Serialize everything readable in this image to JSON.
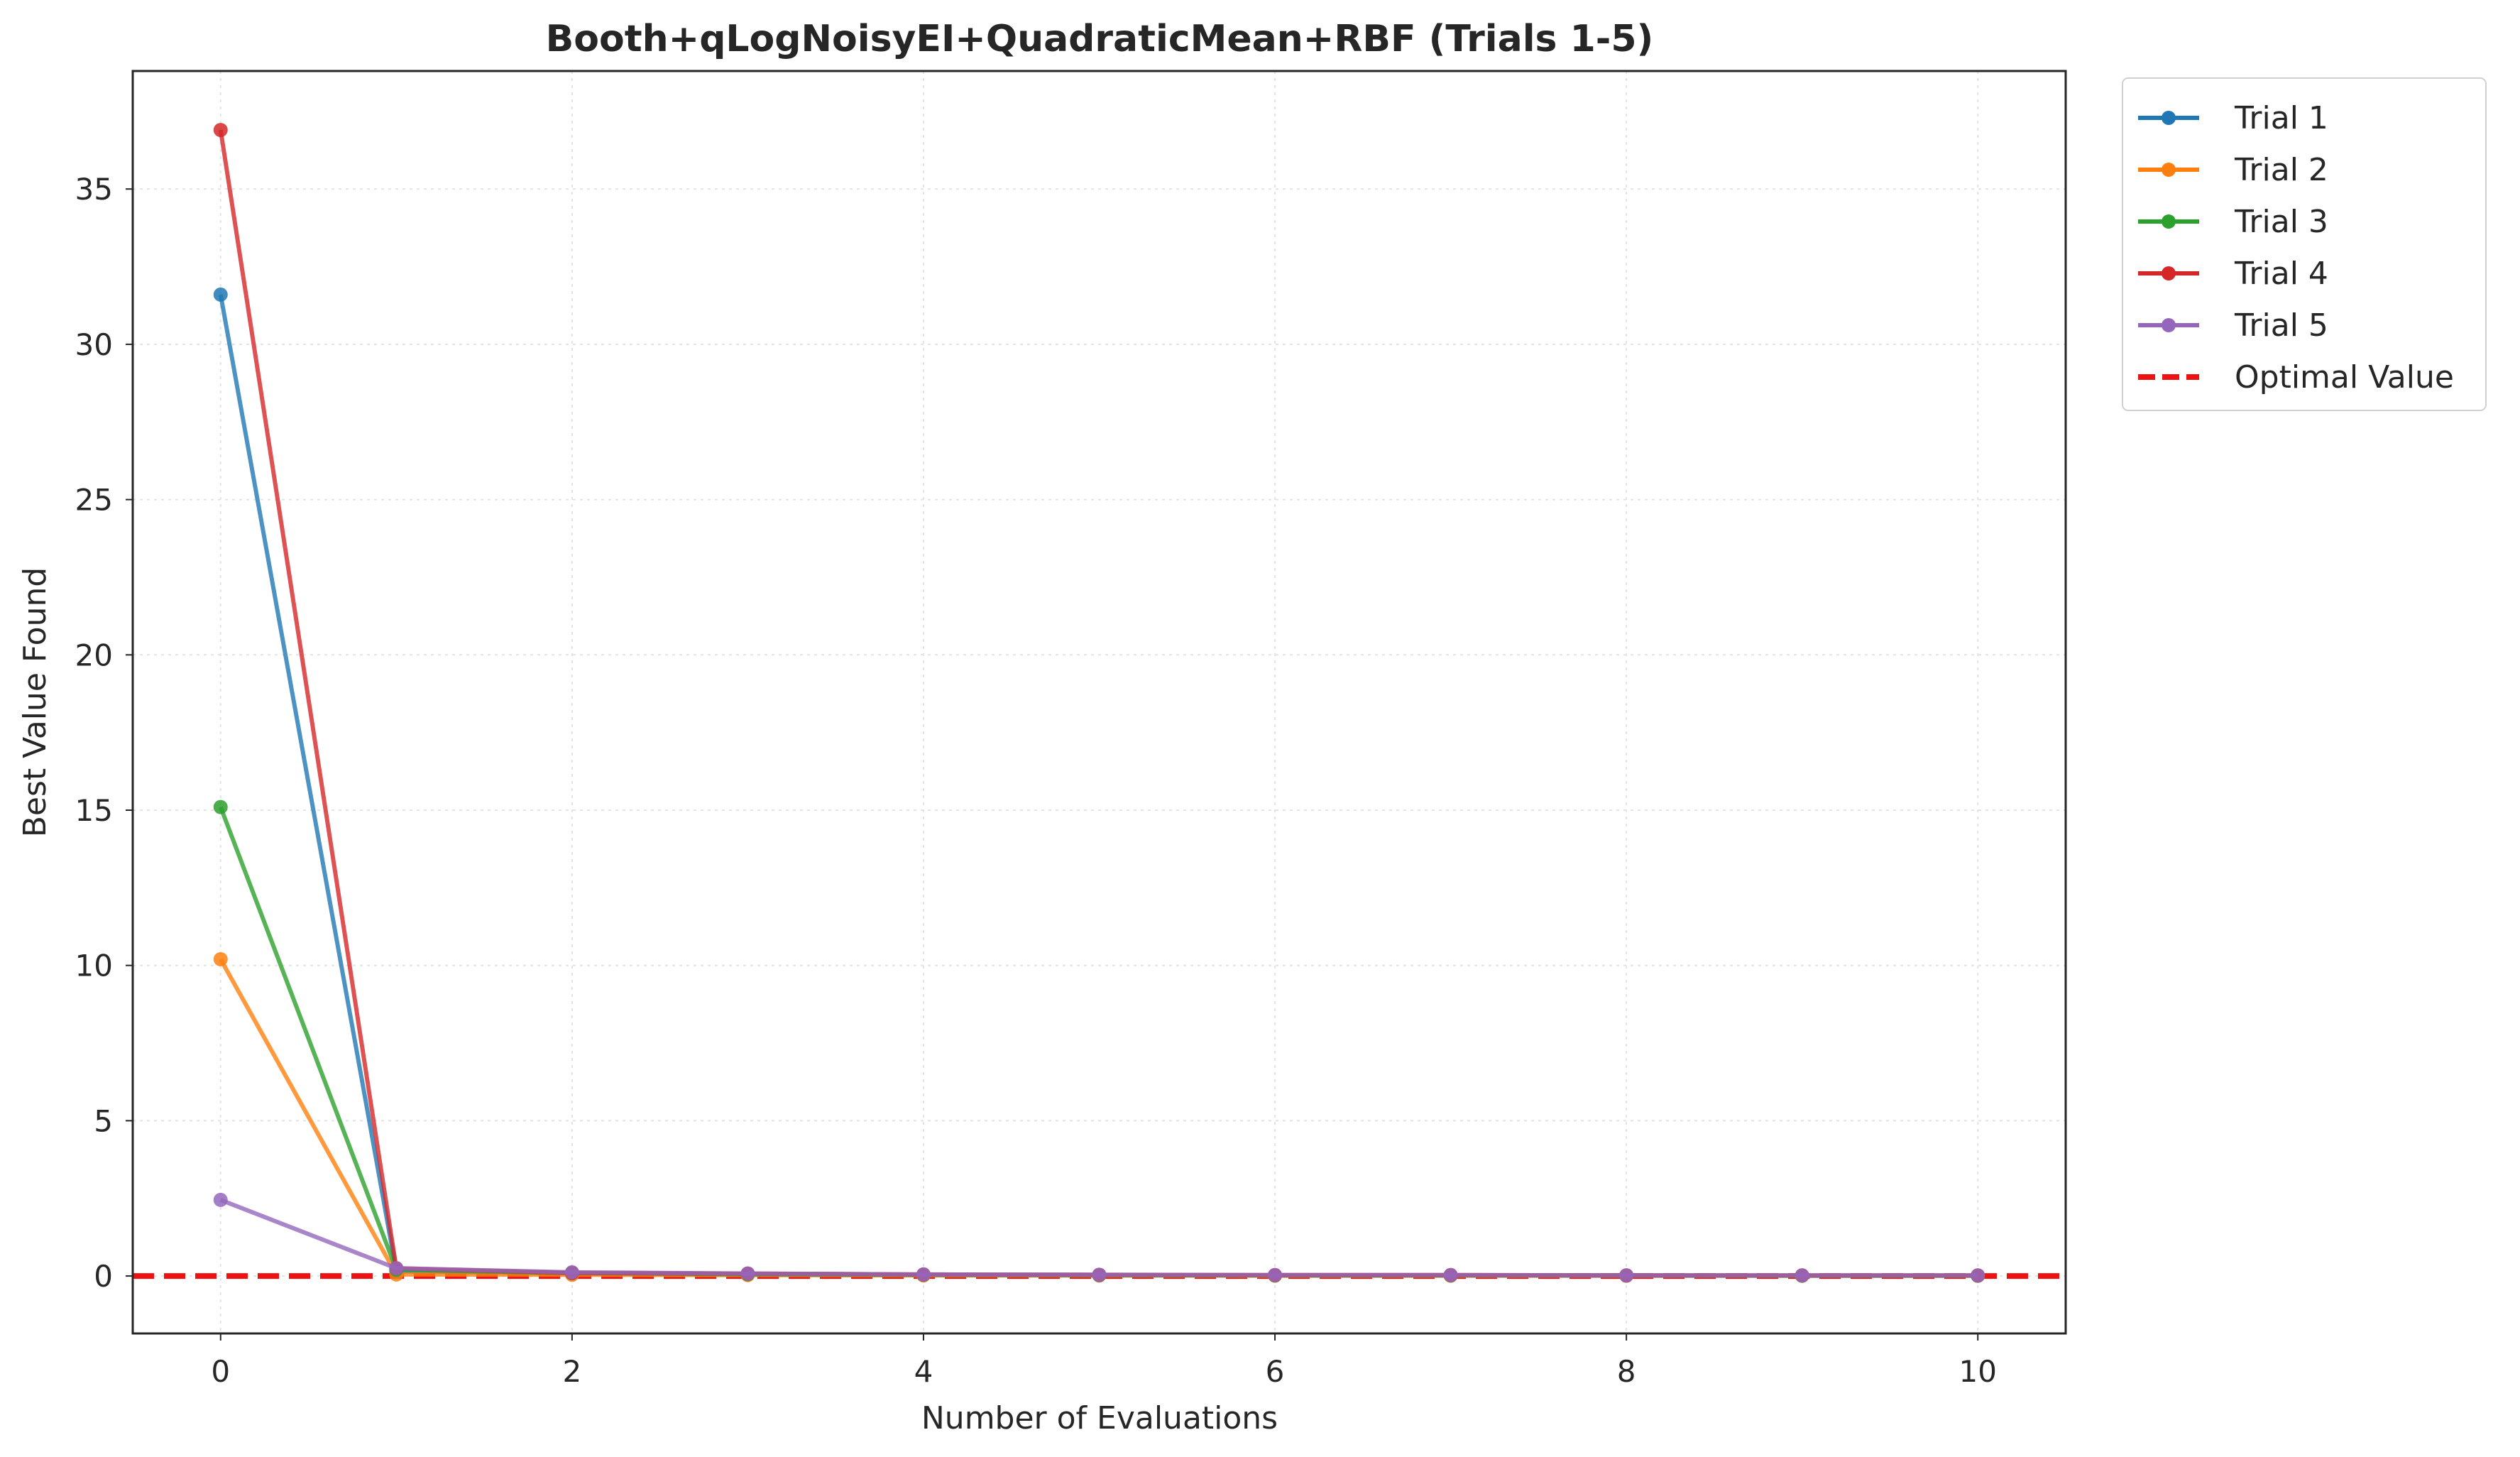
{
  "chart_data": {
    "type": "line",
    "title": "Booth+qLogNoisyEI+QuadraticMean+RBF (Trials 1-5)",
    "xlabel": "Number of Evaluations",
    "ylabel": "Best Value Found",
    "xlim": [
      -0.5,
      10.5
    ],
    "ylim": [
      -1.85,
      38.8
    ],
    "xticks": [
      0,
      2,
      4,
      6,
      8,
      10
    ],
    "yticks": [
      0,
      5,
      10,
      15,
      20,
      25,
      30,
      35
    ],
    "grid": true,
    "legend_position": "outside-top-right",
    "x": [
      0,
      1,
      2,
      3,
      4,
      5,
      6,
      7,
      8,
      9,
      10
    ],
    "series": [
      {
        "name": "Trial 1",
        "color": "#1f77b4",
        "values": [
          31.6,
          0.15,
          0.08,
          0.05,
          0.03,
          0.02,
          0.02,
          0.02,
          0.01,
          0.01,
          0.01
        ]
      },
      {
        "name": "Trial 2",
        "color": "#ff7f0e",
        "values": [
          10.2,
          0.05,
          0.04,
          0.03,
          0.02,
          0.02,
          0.01,
          0.01,
          0.01,
          0.01,
          0.01
        ]
      },
      {
        "name": "Trial 3",
        "color": "#2ca02c",
        "values": [
          15.1,
          0.2,
          0.1,
          0.06,
          0.04,
          0.03,
          0.02,
          0.02,
          0.02,
          0.01,
          0.01
        ]
      },
      {
        "name": "Trial 4",
        "color": "#d62728",
        "values": [
          36.9,
          0.25,
          0.1,
          0.08,
          0.05,
          0.04,
          0.03,
          0.03,
          0.02,
          0.02,
          0.02
        ]
      },
      {
        "name": "Trial 5",
        "color": "#9467bd",
        "values": [
          2.45,
          0.25,
          0.12,
          0.08,
          0.05,
          0.04,
          0.03,
          0.03,
          0.02,
          0.02,
          0.02
        ]
      }
    ],
    "reference_line": {
      "name": "Optimal Value",
      "value": 0,
      "color": "#ee1111",
      "style": "dashed"
    }
  }
}
